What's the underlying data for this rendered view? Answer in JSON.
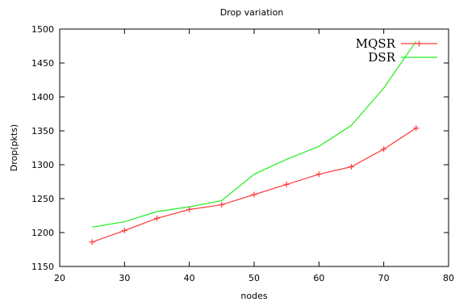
{
  "chart_data": {
    "type": "line",
    "title": "Drop variation",
    "xlabel": "nodes",
    "ylabel": "Drop(pkts)",
    "xlim": [
      20,
      80
    ],
    "ylim": [
      1150,
      1500
    ],
    "xticks": [
      20,
      30,
      40,
      50,
      60,
      70,
      80
    ],
    "yticks": [
      1150,
      1200,
      1250,
      1300,
      1350,
      1400,
      1450,
      1500
    ],
    "grid": false,
    "legend_position": "top-right",
    "series": [
      {
        "name": "MQSR",
        "color": "#ff3b3b",
        "marker": "plus",
        "x": [
          25,
          30,
          35,
          40,
          45,
          50,
          55,
          60,
          65,
          70,
          75
        ],
        "y": [
          1186,
          1203,
          1221,
          1234,
          1241,
          1256,
          1271,
          1286,
          1297,
          1323,
          1354
        ]
      },
      {
        "name": "DSR",
        "color": "#22ee22",
        "marker": "none",
        "x": [
          25,
          30,
          35,
          40,
          45,
          50,
          55,
          60,
          65,
          70,
          75
        ],
        "y": [
          1208,
          1216,
          1231,
          1238,
          1247,
          1286,
          1308,
          1327,
          1358,
          1413,
          1482
        ]
      }
    ]
  }
}
